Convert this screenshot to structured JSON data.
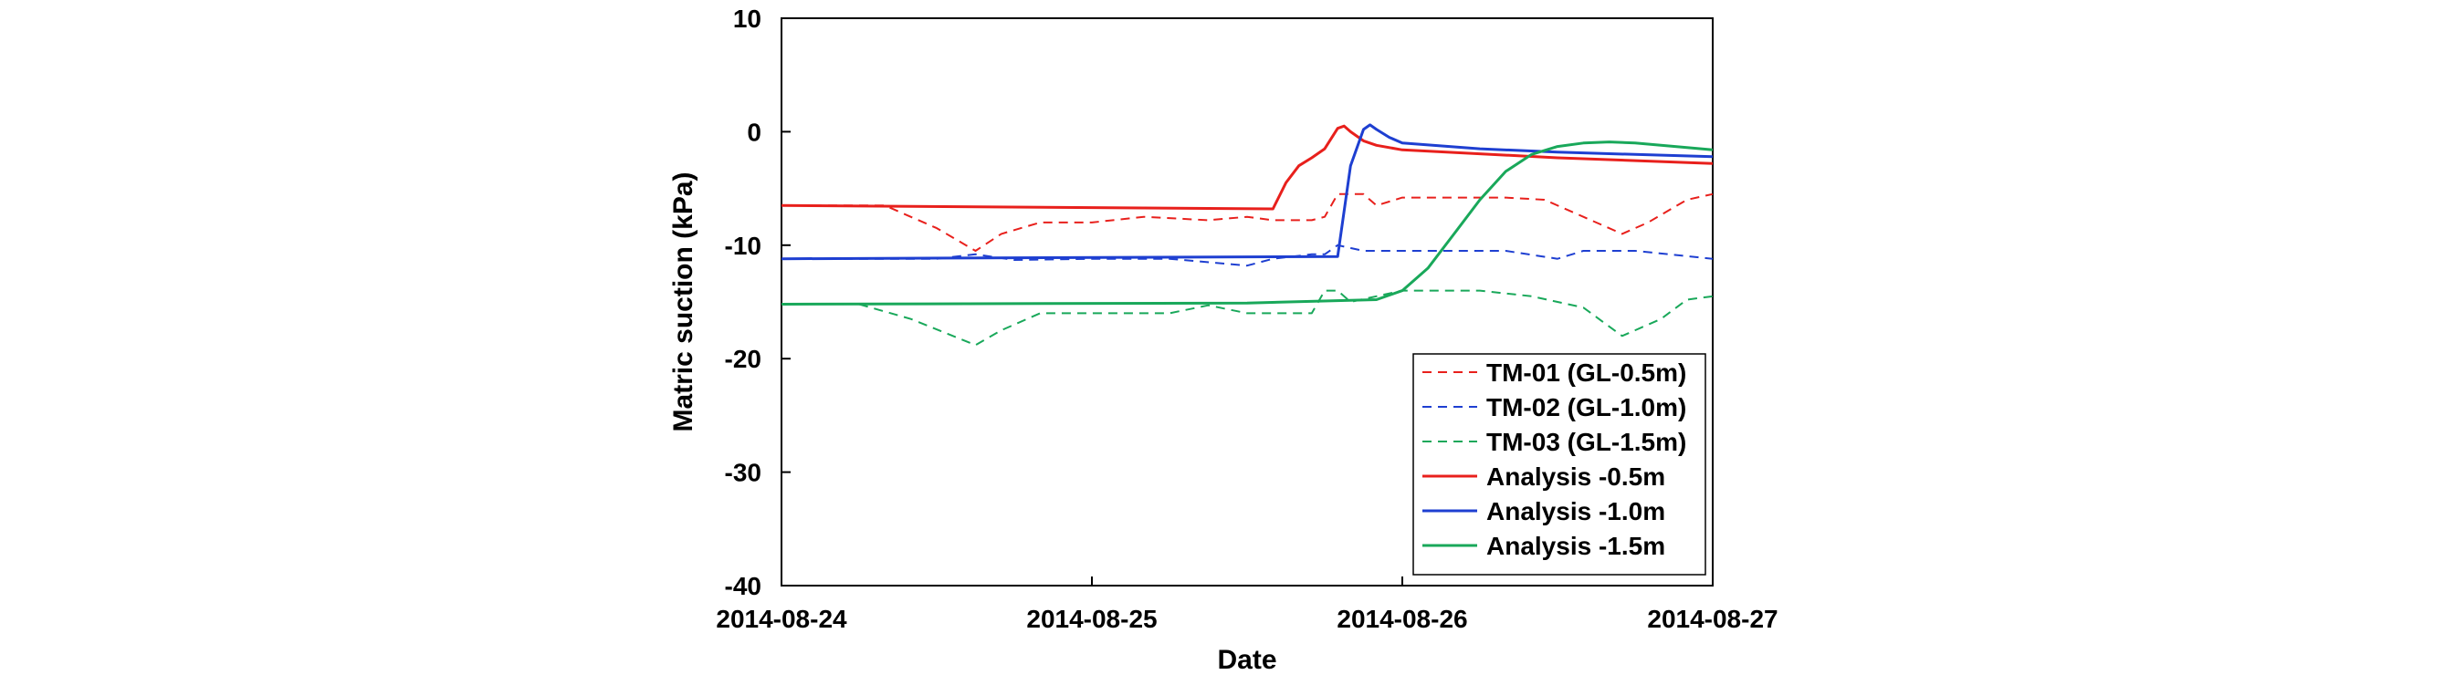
{
  "chart_data": {
    "type": "line",
    "title": "",
    "xlabel": "Date",
    "ylabel": "Matric suction (kPa)",
    "xlim": [
      "2014-08-24 00:00",
      "2014-08-27 00:00"
    ],
    "ylim": [
      -40,
      10
    ],
    "x_ticks": [
      "2014-08-24",
      "2014-08-25",
      "2014-08-26",
      "2014-08-27"
    ],
    "y_ticks": [
      "10",
      "0",
      "-10",
      "-20",
      "-30",
      "-40"
    ],
    "legend_position": "bottom-right",
    "series": [
      {
        "name": "TM-01 (GL-0.5m)",
        "color": "#e8201c",
        "style": "dashed",
        "x": [
          "2014-08-24 00:00",
          "2014-08-24 08:00",
          "2014-08-24 12:00",
          "2014-08-24 15:00",
          "2014-08-24 17:00",
          "2014-08-24 20:00",
          "2014-08-25 00:00",
          "2014-08-25 04:00",
          "2014-08-25 09:00",
          "2014-08-25 12:00",
          "2014-08-25 14:00",
          "2014-08-25 17:00",
          "2014-08-25 18:00",
          "2014-08-25 19:00",
          "2014-08-25 21:00",
          "2014-08-25 22:00",
          "2014-08-26 00:00",
          "2014-08-26 08:00",
          "2014-08-26 11:00",
          "2014-08-26 14:00",
          "2014-08-26 17:00",
          "2014-08-26 19:00",
          "2014-08-26 22:00",
          "2014-08-27 00:00"
        ],
        "y": [
          -6.5,
          -6.5,
          -8.5,
          -10.5,
          -9.0,
          -8.0,
          -8.0,
          -7.5,
          -7.8,
          -7.5,
          -7.8,
          -7.8,
          -7.5,
          -5.5,
          -5.5,
          -6.5,
          -5.8,
          -5.8,
          -6.0,
          -7.5,
          -9.0,
          -8.0,
          -6.0,
          -5.5
        ]
      },
      {
        "name": "TM-02 (GL-1.0m)",
        "color": "#1e3fd1",
        "style": "dashed",
        "x": [
          "2014-08-24 00:00",
          "2014-08-24 12:00",
          "2014-08-24 15:00",
          "2014-08-24 18:00",
          "2014-08-25 00:00",
          "2014-08-25 06:00",
          "2014-08-25 12:00",
          "2014-08-25 14:00",
          "2014-08-25 17:00",
          "2014-08-25 18:00",
          "2014-08-25 19:00",
          "2014-08-25 21:00",
          "2014-08-26 00:00",
          "2014-08-26 08:00",
          "2014-08-26 12:00",
          "2014-08-26 14:00",
          "2014-08-26 18:00",
          "2014-08-27 00:00"
        ],
        "y": [
          -11.2,
          -11.2,
          -10.8,
          -11.3,
          -11.2,
          -11.2,
          -11.8,
          -11.2,
          -10.8,
          -10.8,
          -10.0,
          -10.5,
          -10.5,
          -10.5,
          -11.2,
          -10.5,
          -10.5,
          -11.2
        ]
      },
      {
        "name": "TM-03 (GL-1.5m)",
        "color": "#19a85a",
        "style": "dashed",
        "x": [
          "2014-08-24 00:00",
          "2014-08-24 06:00",
          "2014-08-24 10:00",
          "2014-08-24 15:00",
          "2014-08-24 17:00",
          "2014-08-24 20:00",
          "2014-08-25 00:00",
          "2014-08-25 06:00",
          "2014-08-25 09:00",
          "2014-08-25 12:00",
          "2014-08-25 17:00",
          "2014-08-25 18:00",
          "2014-08-25 19:00",
          "2014-08-25 20:00",
          "2014-08-25 22:00",
          "2014-08-26 00:00",
          "2014-08-26 06:00",
          "2014-08-26 10:00",
          "2014-08-26 14:00",
          "2014-08-26 17:00",
          "2014-08-26 20:00",
          "2014-08-26 22:00",
          "2014-08-27 00:00"
        ],
        "y": [
          -15.2,
          -15.2,
          -16.5,
          -18.8,
          -17.5,
          -16.0,
          -16.0,
          -16.0,
          -15.3,
          -16.0,
          -16.0,
          -14.0,
          -14.0,
          -15.0,
          -14.5,
          -14.0,
          -14.0,
          -14.5,
          -15.5,
          -18.0,
          -16.5,
          -14.8,
          -14.5
        ]
      },
      {
        "name": "Analysis -0.5m",
        "color": "#e8201c",
        "style": "solid",
        "x": [
          "2014-08-24 00:00",
          "2014-08-25 14:00",
          "2014-08-25 15:00",
          "2014-08-25 16:00",
          "2014-08-25 17:00",
          "2014-08-25 18:00",
          "2014-08-25 19:00",
          "2014-08-25 19:30",
          "2014-08-25 20:00",
          "2014-08-25 21:00",
          "2014-08-25 22:00",
          "2014-08-26 00:00",
          "2014-08-26 12:00",
          "2014-08-27 00:00"
        ],
        "y": [
          -6.5,
          -6.8,
          -4.5,
          -3.0,
          -2.3,
          -1.5,
          0.3,
          0.5,
          0.0,
          -0.8,
          -1.2,
          -1.6,
          -2.3,
          -2.8
        ]
      },
      {
        "name": "Analysis -1.0m",
        "color": "#1e3fd1",
        "style": "solid",
        "x": [
          "2014-08-24 00:00",
          "2014-08-25 19:00",
          "2014-08-25 20:00",
          "2014-08-25 21:00",
          "2014-08-25 21:30",
          "2014-08-25 22:00",
          "2014-08-25 23:00",
          "2014-08-26 00:00",
          "2014-08-26 06:00",
          "2014-08-26 12:00",
          "2014-08-27 00:00"
        ],
        "y": [
          -11.2,
          -11.0,
          -3.0,
          0.2,
          0.6,
          0.2,
          -0.5,
          -1.0,
          -1.5,
          -1.8,
          -2.2
        ]
      },
      {
        "name": "Analysis -1.5m",
        "color": "#19a85a",
        "style": "solid",
        "x": [
          "2014-08-24 00:00",
          "2014-08-25 12:00",
          "2014-08-25 22:00",
          "2014-08-26 00:00",
          "2014-08-26 02:00",
          "2014-08-26 04:00",
          "2014-08-26 06:00",
          "2014-08-26 08:00",
          "2014-08-26 10:00",
          "2014-08-26 12:00",
          "2014-08-26 14:00",
          "2014-08-26 16:00",
          "2014-08-26 18:00",
          "2014-08-26 22:00",
          "2014-08-27 00:00"
        ],
        "y": [
          -15.2,
          -15.1,
          -14.8,
          -14.0,
          -12.0,
          -9.0,
          -6.0,
          -3.5,
          -2.0,
          -1.3,
          -1.0,
          -0.9,
          -1.0,
          -1.4,
          -1.6
        ]
      }
    ]
  }
}
